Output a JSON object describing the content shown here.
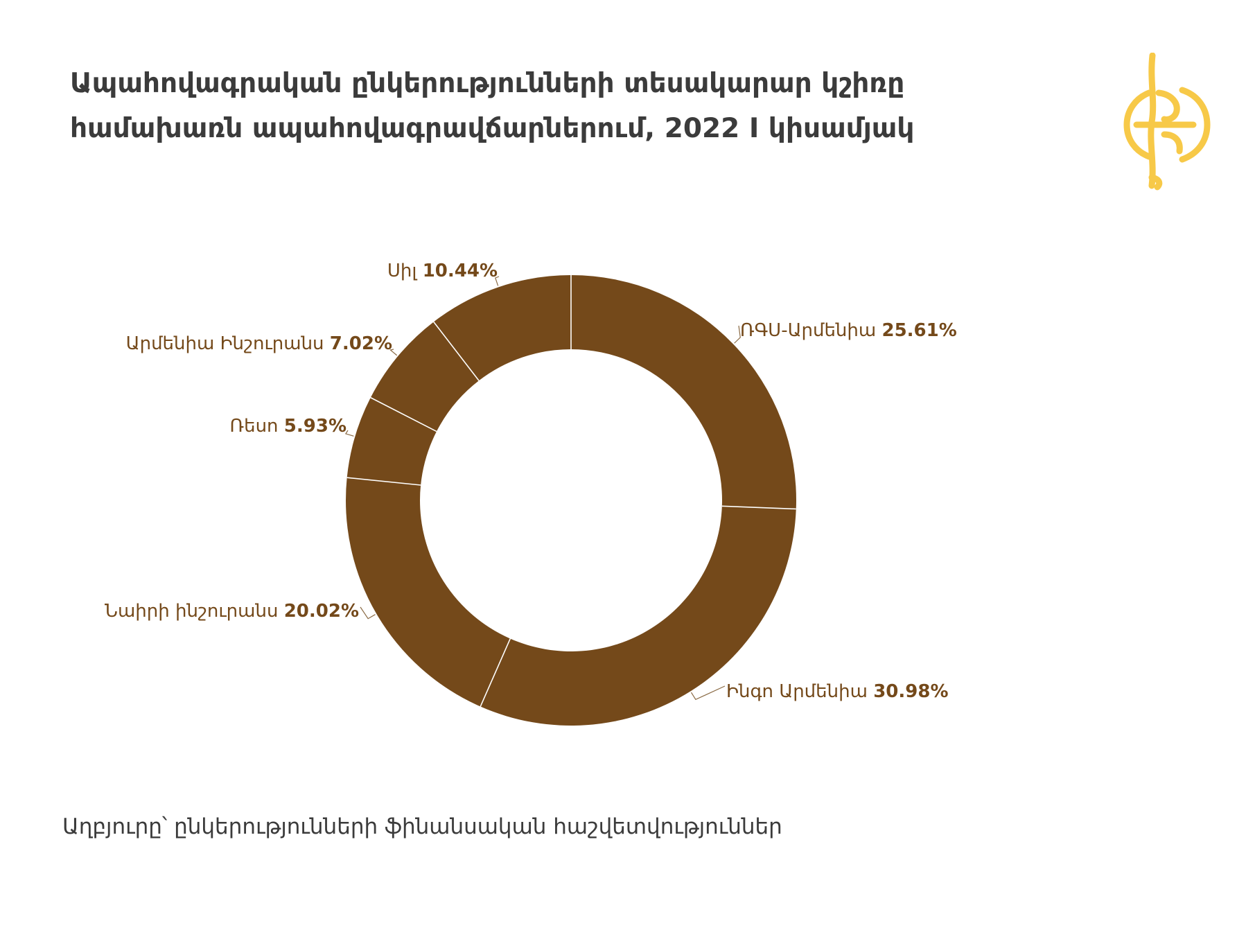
{
  "title_lines": [
    "Ապահովագրական ընկերությունների տեսակարար կշիռը",
    "համախառն ապահովագրավճարներում, 2022 I կիսամյակ"
  ],
  "source": "Աղբյուրը՝ ընկերությունների ֆինանսական հաշվետվություններ",
  "colors": {
    "slice": "#74491a",
    "separator": "#ffffff",
    "logo": "#f7c948",
    "title": "#3b3b3b"
  },
  "logo_icon": "globe-keyhole-logo-icon",
  "chart_data": {
    "type": "pie",
    "donut": true,
    "unit": "%",
    "slices": [
      {
        "label": "ՌԳՍ-Արմենիա",
        "value": 25.61,
        "value_text": "25.61%"
      },
      {
        "label": "Ինգո Արմենիա",
        "value": 30.98,
        "value_text": "30.98%"
      },
      {
        "label": "Նաիրի ինշուրանս",
        "value": 20.02,
        "value_text": "20.02%"
      },
      {
        "label": "Ռեսո",
        "value": 5.93,
        "value_text": "5.93%"
      },
      {
        "label": "Արմենիա Ինշուրանս",
        "value": 7.02,
        "value_text": "7.02%"
      },
      {
        "label": "Սիլ",
        "value": 10.44,
        "value_text": "10.44%"
      }
    ]
  }
}
